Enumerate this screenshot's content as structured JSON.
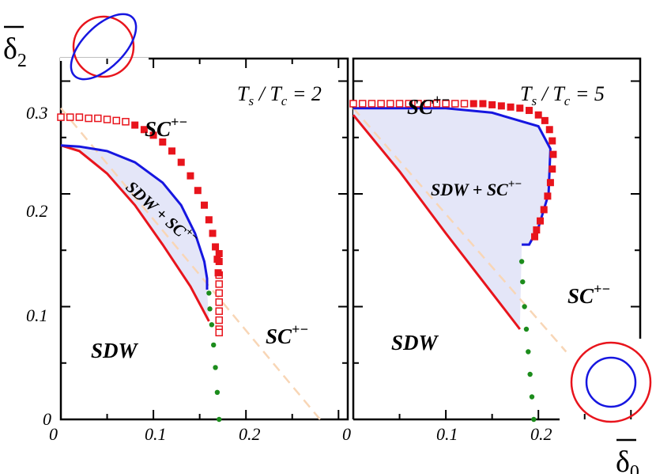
{
  "axes": {
    "y_symbol": "δ",
    "y_subscript": "2",
    "x_symbol": "δ",
    "x_subscript": "0"
  },
  "regions": {
    "sdw": "SDW",
    "sc_base": "SC",
    "sc_sup": "+−",
    "mixed": "SDW + SC",
    "mixed_sup": "+−"
  },
  "panels": [
    {
      "ratio_T": "T",
      "ratio_s": "s",
      "ratio_slash": " / ",
      "ratio_c": "c",
      "ratio_value": " = 2",
      "xticks": [
        "0",
        "0.1",
        "0.2"
      ],
      "yticks": [
        "0",
        "0.1",
        "0.2",
        "0.3"
      ]
    },
    {
      "ratio_T": "T",
      "ratio_s": "s",
      "ratio_slash": " / ",
      "ratio_c": "c",
      "ratio_value": " = 5",
      "xticks": [
        "0",
        "0.1",
        "0.2"
      ],
      "yticks": []
    }
  ],
  "colors": {
    "sdw_boundary": "#e8141c",
    "sc_boundary": "#e8141c",
    "mixed_boundary": "#1616e0",
    "mixed_fill": "#e4e6f8",
    "dotted_line": "#1c8c1c",
    "dashed_line": "#f8d6b6"
  },
  "icons": {
    "top_left": "ellipse-circle-fermi-surfaces-icon",
    "bottom_right": "concentric-circles-fermi-surfaces-icon"
  },
  "chart_data": [
    {
      "type": "line",
      "panel": "left",
      "xlim": [
        0,
        0.31
      ],
      "ylim": [
        0,
        0.32
      ],
      "series": [
        {
          "kind": "sdw_boundary",
          "x": [
            0,
            0.02,
            0.05,
            0.08,
            0.11,
            0.14,
            0.16
          ],
          "y": [
            0.243,
            0.238,
            0.218,
            0.19,
            0.155,
            0.118,
            0.087
          ]
        },
        {
          "kind": "mixed_boundary",
          "x": [
            0,
            0.02,
            0.05,
            0.08,
            0.11,
            0.13,
            0.145,
            0.155,
            0.158,
            0.158
          ],
          "y": [
            0.243,
            0.242,
            0.238,
            0.228,
            0.21,
            0.19,
            0.165,
            0.14,
            0.125,
            0.115
          ]
        },
        {
          "kind": "sc_first_order",
          "x": [
            0,
            0.01,
            0.02,
            0.03,
            0.04,
            0.05,
            0.06,
            0.07,
            0.171,
            0.171,
            0.171,
            0.171,
            0.171,
            0.171,
            0.171,
            0.171
          ],
          "y": [
            0.268,
            0.268,
            0.268,
            0.267,
            0.267,
            0.266,
            0.265,
            0.264,
            0.128,
            0.12,
            0.112,
            0.104,
            0.096,
            0.088,
            0.08,
            0.077
          ]
        },
        {
          "kind": "sc_second_order",
          "x": [
            0.08,
            0.09,
            0.1,
            0.11,
            0.12,
            0.13,
            0.14,
            0.148,
            0.155,
            0.16,
            0.164,
            0.167,
            0.169,
            0.17,
            0.171,
            0.171
          ],
          "y": [
            0.261,
            0.257,
            0.252,
            0.246,
            0.238,
            0.228,
            0.216,
            0.203,
            0.19,
            0.177,
            0.165,
            0.153,
            0.142,
            0.13,
            0.14,
            0.147
          ]
        },
        {
          "kind": "dotted",
          "x": [
            0.16,
            0.161,
            0.163,
            0.165,
            0.167,
            0.169,
            0.171
          ],
          "y": [
            0.112,
            0.098,
            0.084,
            0.066,
            0.046,
            0.024,
            0.0
          ]
        },
        {
          "kind": "dashed",
          "x": [
            0,
            0.28
          ],
          "y": [
            0.276,
            0.0
          ]
        }
      ]
    },
    {
      "type": "line",
      "panel": "right",
      "xlim": [
        0,
        0.31
      ],
      "ylim": [
        0,
        0.32
      ],
      "series": [
        {
          "kind": "sdw_boundary",
          "x": [
            0,
            0.05,
            0.1,
            0.15,
            0.18
          ],
          "y": [
            0.27,
            0.22,
            0.165,
            0.112,
            0.08
          ]
        },
        {
          "kind": "mixed_boundary",
          "x": [
            0,
            0.1,
            0.15,
            0.2,
            0.213,
            0.211,
            0.2,
            0.19,
            0.182
          ],
          "y": [
            0.276,
            0.276,
            0.272,
            0.26,
            0.24,
            0.2,
            0.17,
            0.155,
            0.155
          ]
        },
        {
          "kind": "sc_first_order",
          "x": [
            0,
            0.01,
            0.02,
            0.03,
            0.04,
            0.05,
            0.06,
            0.07,
            0.08,
            0.09,
            0.1,
            0.11,
            0.12
          ],
          "y": [
            0.28,
            0.28,
            0.28,
            0.28,
            0.28,
            0.28,
            0.28,
            0.28,
            0.28,
            0.28,
            0.28,
            0.28,
            0.28
          ]
        },
        {
          "kind": "sc_second_order",
          "x": [
            0.13,
            0.14,
            0.15,
            0.16,
            0.17,
            0.18,
            0.19,
            0.2,
            0.207,
            0.212,
            0.215,
            0.216,
            0.215,
            0.213,
            0.21,
            0.206,
            0.202,
            0.198,
            0.196
          ],
          "y": [
            0.28,
            0.28,
            0.279,
            0.278,
            0.277,
            0.276,
            0.274,
            0.27,
            0.265,
            0.257,
            0.247,
            0.235,
            0.222,
            0.21,
            0.198,
            0.186,
            0.176,
            0.168,
            0.162
          ]
        },
        {
          "kind": "dotted",
          "x": [
            0.182,
            0.183,
            0.185,
            0.187,
            0.189,
            0.191,
            0.193,
            0.195
          ],
          "y": [
            0.14,
            0.122,
            0.1,
            0.08,
            0.06,
            0.04,
            0.02,
            0.0
          ]
        },
        {
          "kind": "dashed",
          "x": [
            0,
            0.23
          ],
          "y": [
            0.276,
            0.06
          ]
        }
      ]
    }
  ]
}
